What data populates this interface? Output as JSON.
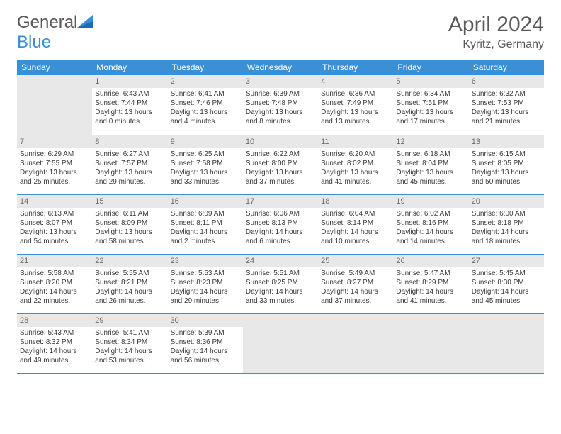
{
  "brand": {
    "part1": "General",
    "part2": "Blue"
  },
  "title": "April 2024",
  "location": "Kyritz, Germany",
  "colors": {
    "header_bg": "#3b8fd4",
    "header_text": "#ffffff",
    "daynum_bg": "#e8e8e8",
    "border": "#3b8fd4",
    "text": "#3a3a3a",
    "title_text": "#5a5a5a"
  },
  "weekdays": [
    "Sunday",
    "Monday",
    "Tuesday",
    "Wednesday",
    "Thursday",
    "Friday",
    "Saturday"
  ],
  "weeks": [
    [
      null,
      {
        "n": "1",
        "sr": "Sunrise: 6:43 AM",
        "ss": "Sunset: 7:44 PM",
        "d1": "Daylight: 13 hours",
        "d2": "and 0 minutes."
      },
      {
        "n": "2",
        "sr": "Sunrise: 6:41 AM",
        "ss": "Sunset: 7:46 PM",
        "d1": "Daylight: 13 hours",
        "d2": "and 4 minutes."
      },
      {
        "n": "3",
        "sr": "Sunrise: 6:39 AM",
        "ss": "Sunset: 7:48 PM",
        "d1": "Daylight: 13 hours",
        "d2": "and 8 minutes."
      },
      {
        "n": "4",
        "sr": "Sunrise: 6:36 AM",
        "ss": "Sunset: 7:49 PM",
        "d1": "Daylight: 13 hours",
        "d2": "and 13 minutes."
      },
      {
        "n": "5",
        "sr": "Sunrise: 6:34 AM",
        "ss": "Sunset: 7:51 PM",
        "d1": "Daylight: 13 hours",
        "d2": "and 17 minutes."
      },
      {
        "n": "6",
        "sr": "Sunrise: 6:32 AM",
        "ss": "Sunset: 7:53 PM",
        "d1": "Daylight: 13 hours",
        "d2": "and 21 minutes."
      }
    ],
    [
      {
        "n": "7",
        "sr": "Sunrise: 6:29 AM",
        "ss": "Sunset: 7:55 PM",
        "d1": "Daylight: 13 hours",
        "d2": "and 25 minutes."
      },
      {
        "n": "8",
        "sr": "Sunrise: 6:27 AM",
        "ss": "Sunset: 7:57 PM",
        "d1": "Daylight: 13 hours",
        "d2": "and 29 minutes."
      },
      {
        "n": "9",
        "sr": "Sunrise: 6:25 AM",
        "ss": "Sunset: 7:58 PM",
        "d1": "Daylight: 13 hours",
        "d2": "and 33 minutes."
      },
      {
        "n": "10",
        "sr": "Sunrise: 6:22 AM",
        "ss": "Sunset: 8:00 PM",
        "d1": "Daylight: 13 hours",
        "d2": "and 37 minutes."
      },
      {
        "n": "11",
        "sr": "Sunrise: 6:20 AM",
        "ss": "Sunset: 8:02 PM",
        "d1": "Daylight: 13 hours",
        "d2": "and 41 minutes."
      },
      {
        "n": "12",
        "sr": "Sunrise: 6:18 AM",
        "ss": "Sunset: 8:04 PM",
        "d1": "Daylight: 13 hours",
        "d2": "and 45 minutes."
      },
      {
        "n": "13",
        "sr": "Sunrise: 6:15 AM",
        "ss": "Sunset: 8:05 PM",
        "d1": "Daylight: 13 hours",
        "d2": "and 50 minutes."
      }
    ],
    [
      {
        "n": "14",
        "sr": "Sunrise: 6:13 AM",
        "ss": "Sunset: 8:07 PM",
        "d1": "Daylight: 13 hours",
        "d2": "and 54 minutes."
      },
      {
        "n": "15",
        "sr": "Sunrise: 6:11 AM",
        "ss": "Sunset: 8:09 PM",
        "d1": "Daylight: 13 hours",
        "d2": "and 58 minutes."
      },
      {
        "n": "16",
        "sr": "Sunrise: 6:09 AM",
        "ss": "Sunset: 8:11 PM",
        "d1": "Daylight: 14 hours",
        "d2": "and 2 minutes."
      },
      {
        "n": "17",
        "sr": "Sunrise: 6:06 AM",
        "ss": "Sunset: 8:13 PM",
        "d1": "Daylight: 14 hours",
        "d2": "and 6 minutes."
      },
      {
        "n": "18",
        "sr": "Sunrise: 6:04 AM",
        "ss": "Sunset: 8:14 PM",
        "d1": "Daylight: 14 hours",
        "d2": "and 10 minutes."
      },
      {
        "n": "19",
        "sr": "Sunrise: 6:02 AM",
        "ss": "Sunset: 8:16 PM",
        "d1": "Daylight: 14 hours",
        "d2": "and 14 minutes."
      },
      {
        "n": "20",
        "sr": "Sunrise: 6:00 AM",
        "ss": "Sunset: 8:18 PM",
        "d1": "Daylight: 14 hours",
        "d2": "and 18 minutes."
      }
    ],
    [
      {
        "n": "21",
        "sr": "Sunrise: 5:58 AM",
        "ss": "Sunset: 8:20 PM",
        "d1": "Daylight: 14 hours",
        "d2": "and 22 minutes."
      },
      {
        "n": "22",
        "sr": "Sunrise: 5:55 AM",
        "ss": "Sunset: 8:21 PM",
        "d1": "Daylight: 14 hours",
        "d2": "and 26 minutes."
      },
      {
        "n": "23",
        "sr": "Sunrise: 5:53 AM",
        "ss": "Sunset: 8:23 PM",
        "d1": "Daylight: 14 hours",
        "d2": "and 29 minutes."
      },
      {
        "n": "24",
        "sr": "Sunrise: 5:51 AM",
        "ss": "Sunset: 8:25 PM",
        "d1": "Daylight: 14 hours",
        "d2": "and 33 minutes."
      },
      {
        "n": "25",
        "sr": "Sunrise: 5:49 AM",
        "ss": "Sunset: 8:27 PM",
        "d1": "Daylight: 14 hours",
        "d2": "and 37 minutes."
      },
      {
        "n": "26",
        "sr": "Sunrise: 5:47 AM",
        "ss": "Sunset: 8:29 PM",
        "d1": "Daylight: 14 hours",
        "d2": "and 41 minutes."
      },
      {
        "n": "27",
        "sr": "Sunrise: 5:45 AM",
        "ss": "Sunset: 8:30 PM",
        "d1": "Daylight: 14 hours",
        "d2": "and 45 minutes."
      }
    ],
    [
      {
        "n": "28",
        "sr": "Sunrise: 5:43 AM",
        "ss": "Sunset: 8:32 PM",
        "d1": "Daylight: 14 hours",
        "d2": "and 49 minutes."
      },
      {
        "n": "29",
        "sr": "Sunrise: 5:41 AM",
        "ss": "Sunset: 8:34 PM",
        "d1": "Daylight: 14 hours",
        "d2": "and 53 minutes."
      },
      {
        "n": "30",
        "sr": "Sunrise: 5:39 AM",
        "ss": "Sunset: 8:36 PM",
        "d1": "Daylight: 14 hours",
        "d2": "and 56 minutes."
      },
      null,
      null,
      null,
      null
    ]
  ]
}
